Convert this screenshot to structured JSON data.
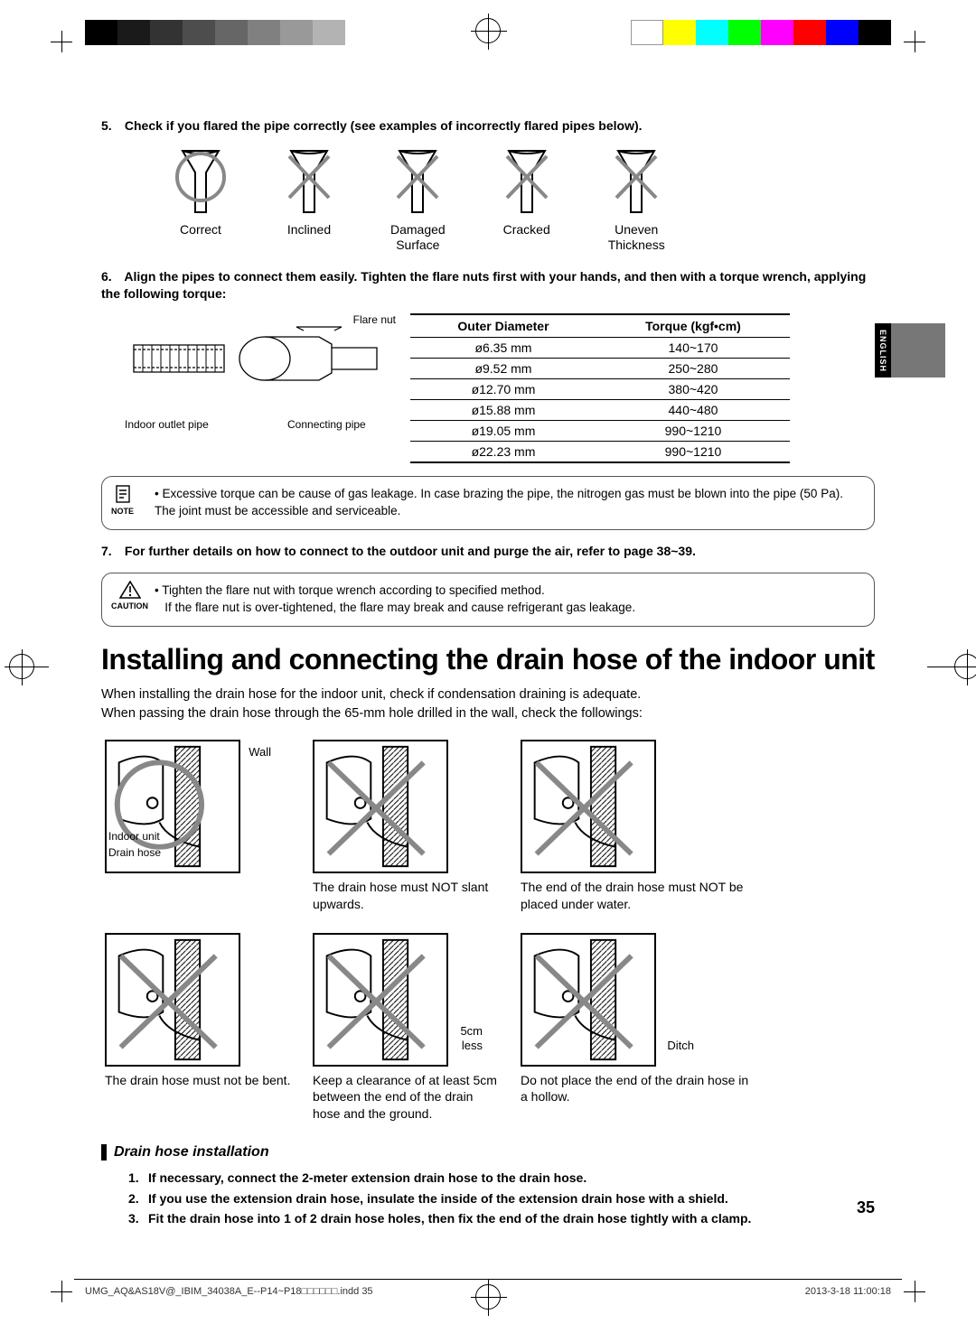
{
  "colorbars_left": [
    "#000000",
    "#1a1a1a",
    "#333333",
    "#4d4d4d",
    "#666666",
    "#808080",
    "#999999",
    "#b3b3b3"
  ],
  "colorbars_right": [
    "#ffffff",
    "#ffff00",
    "#00ffff",
    "#00ff00",
    "#ff00ff",
    "#ff0000",
    "#0000ff",
    "#000000"
  ],
  "step5": {
    "num": "5.",
    "text": "Check if you flared the pipe correctly (see examples of incorrectly flared pipes below)."
  },
  "pipe_examples": [
    {
      "label": "Correct",
      "mark": "ok"
    },
    {
      "label": "Inclined",
      "mark": "x"
    },
    {
      "label": "Damaged\nSurface",
      "mark": "x"
    },
    {
      "label": "Cracked",
      "mark": "x"
    },
    {
      "label": "Uneven\nThickness",
      "mark": "x"
    }
  ],
  "step6": {
    "num": "6.",
    "text": "Align the pipes to connect them easily. Tighten the flare nuts first with your hands, and then with a torque wrench, applying the following torque:"
  },
  "flare_labels": {
    "nut": "Flare nut",
    "outlet": "Indoor outlet pipe",
    "connecting": "Connecting pipe"
  },
  "torque_table": {
    "headers": [
      "Outer Diameter",
      "Torque (kgf•cm)"
    ],
    "rows": [
      [
        "ø6.35 mm",
        "140~170"
      ],
      [
        "ø9.52 mm",
        "250~280"
      ],
      [
        "ø12.70 mm",
        "380~420"
      ],
      [
        "ø15.88 mm",
        "440~480"
      ],
      [
        "ø19.05 mm",
        "990~1210"
      ],
      [
        "ø22.23 mm",
        "990~1210"
      ]
    ]
  },
  "note": {
    "label": "NOTE",
    "text": "Excessive torque can be cause of gas leakage. In case brazing the pipe, the nitrogen gas must be blown into the pipe (50 Pa).  The joint must be accessible and serviceable."
  },
  "step7": {
    "num": "7.",
    "text": "For further details on how to connect to the outdoor unit and purge the air, refer to page 38~39."
  },
  "caution": {
    "label": "CAUTION",
    "text1": "Tighten the flare nut with torque wrench according to specified method.",
    "text2": "If the flare nut is over-tightened, the flare may break and cause refrigerant gas leakage."
  },
  "section_title": "Installing and connecting the drain hose of the indoor unit",
  "intro1": "When installing the drain hose for the indoor unit, check if condensation draining is adequate.",
  "intro2": "When passing the drain hose through the 65-mm hole drilled in the wall, check the followings:",
  "drain": [
    {
      "mark": "ok",
      "anno_top": "Wall",
      "anno_mid": "Indoor unit",
      "anno_low": "Drain hose",
      "caption": ""
    },
    {
      "mark": "x",
      "caption": "The drain hose must  NOT slant upwards."
    },
    {
      "mark": "x",
      "caption": "The end of the drain hose must NOT be placed under water."
    },
    {
      "mark": "x",
      "caption": "The drain hose must not be bent."
    },
    {
      "mark": "x",
      "anno_r1": "5cm",
      "anno_r2": "less",
      "caption": "Keep a clearance of at least 5cm between the end of the drain hose and the ground."
    },
    {
      "mark": "x",
      "anno_r1": "Ditch",
      "caption": "Do not place the end of the drain hose in a hollow."
    }
  ],
  "subhead": "Drain hose installation",
  "install_steps": [
    {
      "n": "1.",
      "t": "If necessary, connect the 2-meter extension drain hose to the drain hose."
    },
    {
      "n": "2.",
      "t": "If you use the extension drain hose, insulate the inside of the extension drain hose with a shield."
    },
    {
      "n": "3.",
      "t": "Fit the drain hose into 1 of 2 drain hose holes, then fix the end of the drain hose tightly with a clamp."
    }
  ],
  "pagenum": "35",
  "sidetab": "ENGLISH",
  "footer_left": "UMG_AQ&AS18V@_IBIM_34038A_E--P14~P18□□□□□□.indd   35",
  "footer_right": "2013-3-18   11:00:18"
}
